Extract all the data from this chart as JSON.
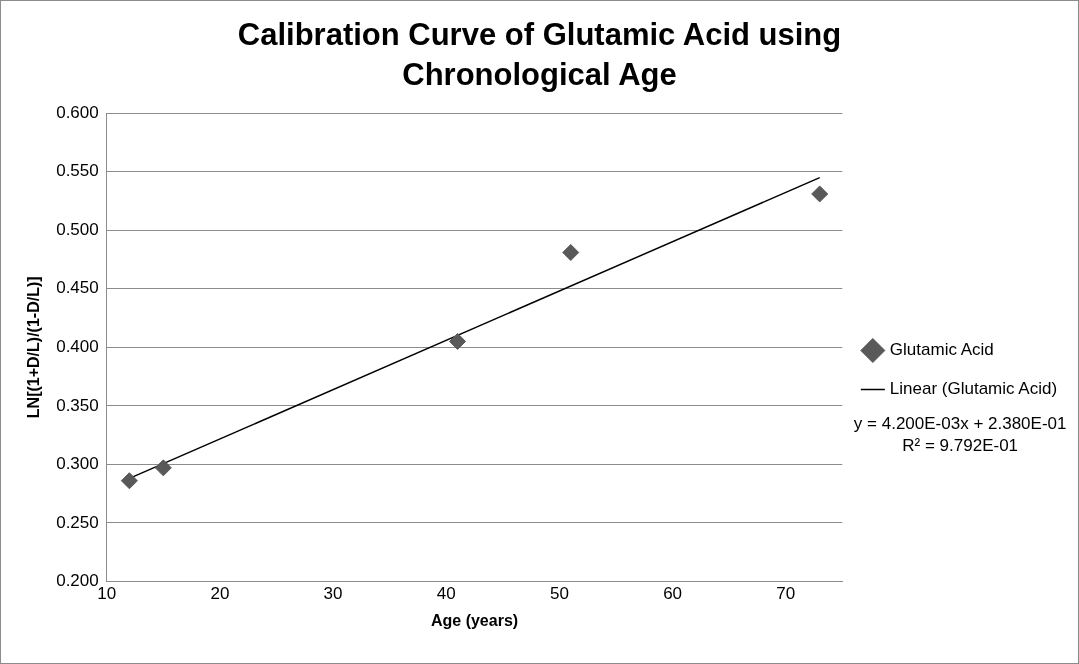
{
  "chart_data": {
    "type": "scatter",
    "title": "Calibration Curve of Glutamic Acid using Chronological Age",
    "xlabel": "Age (years)",
    "ylabel": "LN[(1+D/L)/(1-D/L)]",
    "series": [
      {
        "name": "Glutamic Acid",
        "color": "#595959",
        "marker": "diamond",
        "x": [
          12,
          15,
          41,
          51,
          73
        ],
        "values": [
          0.286,
          0.297,
          0.405,
          0.481,
          0.531
        ]
      },
      {
        "name": "Linear (Glutamic Acid)",
        "type": "line",
        "color": "#000000",
        "marker": "none",
        "line_style": "solid",
        "x": [
          12,
          73
        ],
        "values": [
          0.288,
          0.545
        ]
      }
    ],
    "xlim": [
      10,
      75
    ],
    "xticks": [
      10,
      20,
      30,
      40,
      50,
      60,
      70
    ],
    "ylim": [
      0.2,
      0.6
    ],
    "yticks": [
      {
        "value": 0.2,
        "label": "0.200"
      },
      {
        "value": 0.25,
        "label": "0.250"
      },
      {
        "value": 0.3,
        "label": "0.300"
      },
      {
        "value": 0.35,
        "label": "0.350"
      },
      {
        "value": 0.4,
        "label": "0.400"
      },
      {
        "value": 0.45,
        "label": "0.450"
      },
      {
        "value": 0.5,
        "label": "0.500"
      },
      {
        "value": 0.55,
        "label": "0.550"
      },
      {
        "value": 0.6,
        "label": "0.600"
      }
    ],
    "grid": "y",
    "legend": "right",
    "annotations": [
      "y = 4.200E-03x + 2.380E-01",
      "R² = 9.792E-01"
    ]
  }
}
